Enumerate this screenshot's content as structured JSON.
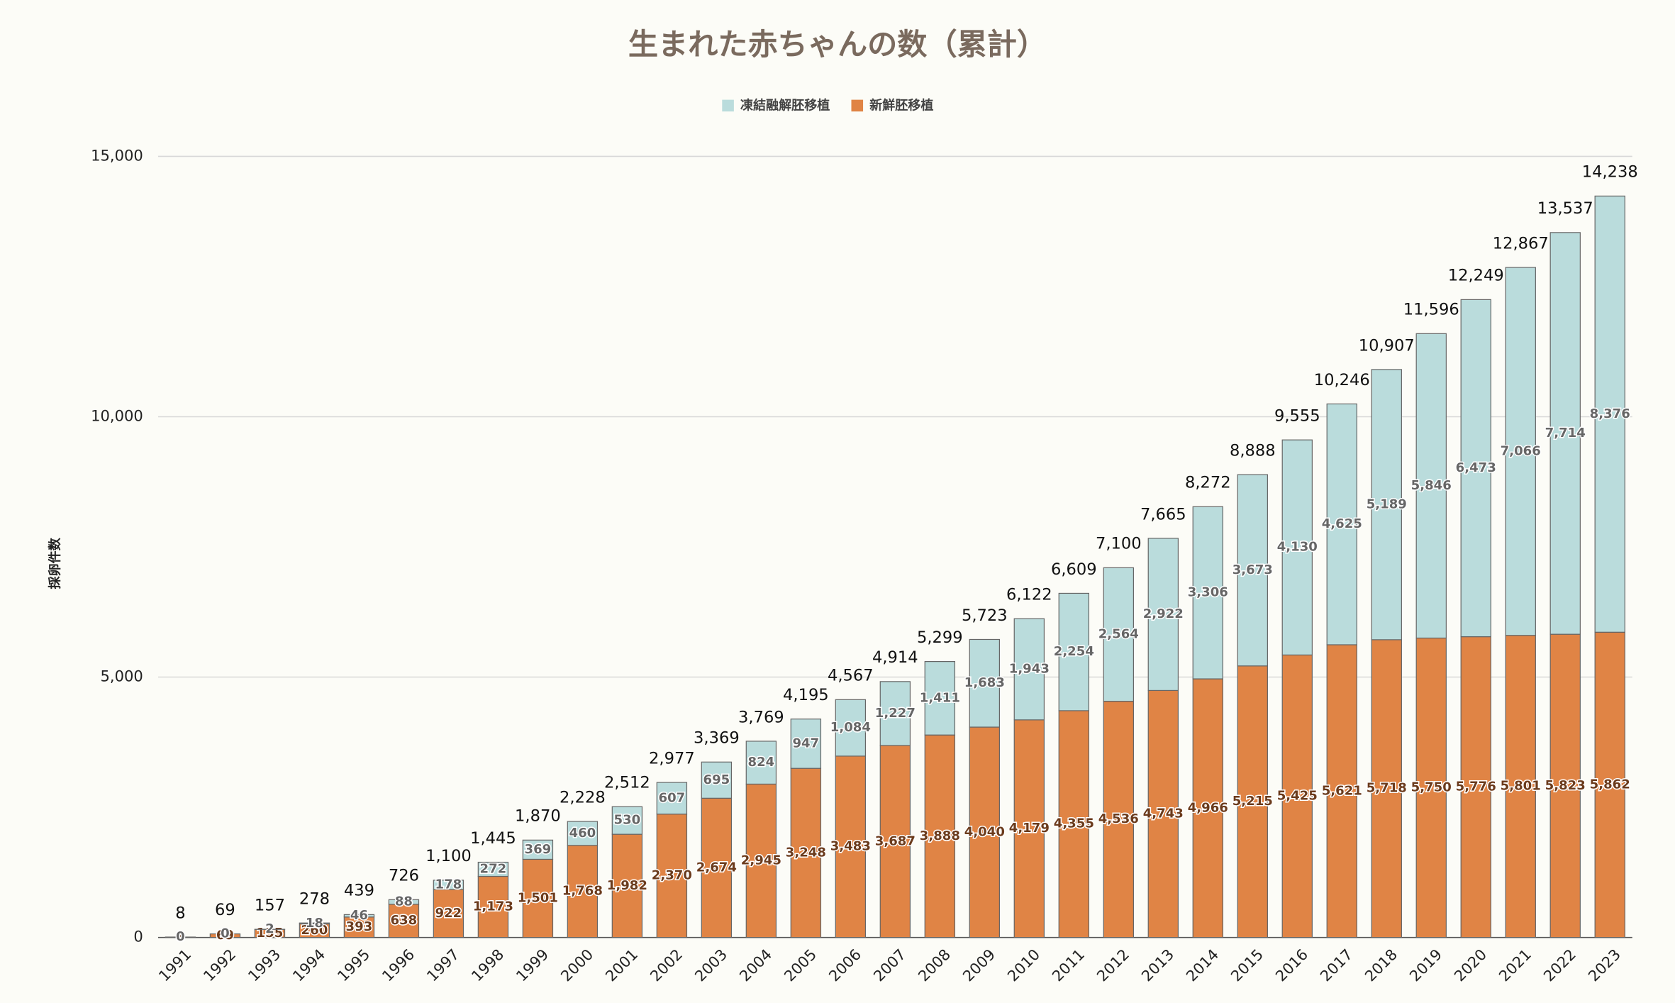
{
  "chart_data": {
    "type": "stacked-bar",
    "title": "生まれた赤ちゃんの数（累計）",
    "y_label": "採卵件数",
    "categories": [
      "1991",
      "1992",
      "1993",
      "1994",
      "1995",
      "1996",
      "1997",
      "1998",
      "1999",
      "2000",
      "2001",
      "2002",
      "2003",
      "2004",
      "2005",
      "2006",
      "2007",
      "2008",
      "2009",
      "2010",
      "2011",
      "2012",
      "2013",
      "2014",
      "2015",
      "2016",
      "2017",
      "2018",
      "2019",
      "2020",
      "2021",
      "2022",
      "2023"
    ],
    "series": [
      {
        "name": "新鮮胚移植",
        "color": "#e08445",
        "values": [
          8,
          69,
          155,
          260,
          393,
          638,
          922,
          1173,
          1501,
          1768,
          1982,
          2370,
          2674,
          2945,
          3248,
          3483,
          3687,
          3888,
          4040,
          4179,
          4355,
          4536,
          4743,
          4966,
          5215,
          5425,
          5621,
          5718,
          5750,
          5776,
          5801,
          5823,
          5862
        ],
        "value_labels": [
          "8",
          "69",
          "155",
          "260",
          "393",
          "638",
          "922",
          "1,173",
          "1,501",
          "1,768",
          "1,982",
          "2,370",
          "2,674",
          "2,945",
          "3,248",
          "3,483",
          "3,687",
          "3,888",
          "4,040",
          "4,179",
          "4,355",
          "4,536",
          "4,743",
          "4,966",
          "5,215",
          "5,425",
          "5,621",
          "5,718",
          "5,750",
          "5,776",
          "5,801",
          "5,823",
          "5,862"
        ]
      },
      {
        "name": "凍結融解胚移植",
        "color": "#badcdc",
        "values": [
          0,
          0,
          2,
          18,
          46,
          88,
          178,
          272,
          369,
          460,
          530,
          607,
          695,
          824,
          947,
          1084,
          1227,
          1411,
          1683,
          1943,
          2254,
          2564,
          2922,
          3306,
          3673,
          4130,
          4625,
          5189,
          5846,
          6473,
          7066,
          7714,
          8376
        ],
        "value_labels": [
          "0",
          "0",
          "2",
          "18",
          "46",
          "88",
          "178",
          "272",
          "369",
          "460",
          "530",
          "607",
          "695",
          "824",
          "947",
          "1,084",
          "1,227",
          "1,411",
          "1,683",
          "1,943",
          "2,254",
          "2,564",
          "2,922",
          "3,306",
          "3,673",
          "4,130",
          "4,625",
          "5,189",
          "5,846",
          "6,473",
          "7,066",
          "7,714",
          "8,376"
        ]
      }
    ],
    "total_labels": [
      "8",
      "69",
      "157",
      "278",
      "439",
      "726",
      "1,100",
      "1,445",
      "1,870",
      "2,228",
      "2,512",
      "2,977",
      "3,369",
      "3,769",
      "4,195",
      "4,567",
      "4,914",
      "5,299",
      "5,723",
      "6,122",
      "6,609",
      "7,100",
      "7,665",
      "8,272",
      "8,888",
      "9,555",
      "10,246",
      "10,907",
      "11,596",
      "12,249",
      "12,867",
      "13,537",
      "14,238"
    ],
    "ylim": [
      0,
      15000
    ],
    "yticks": [
      0,
      {
        "value": 5000,
        "label": "5,000"
      },
      {
        "value": 10000,
        "label": "10,000"
      },
      {
        "value": 15000,
        "label": "15,000"
      }
    ],
    "grid": true,
    "legend": "top"
  }
}
